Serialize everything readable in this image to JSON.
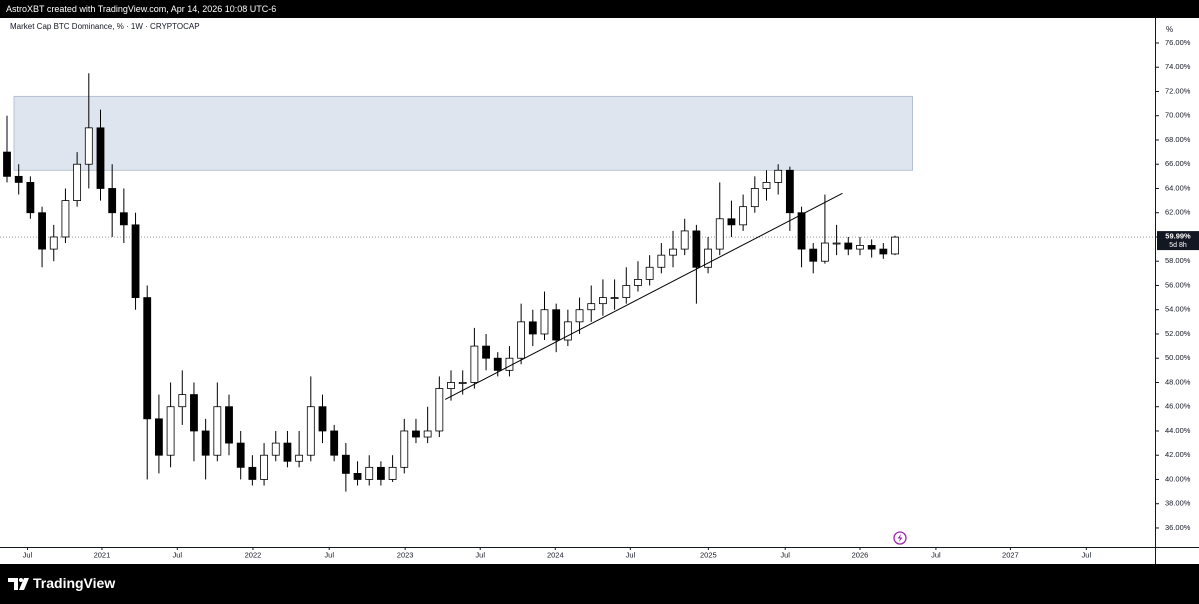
{
  "chart_data": {
    "type": "candlestick",
    "header": "AstroXBT created with TradingView.com, Apr 14, 2026 10:08 UTC-6",
    "title": "Market Cap BTC Dominance, % · 1W · CRYPTOCAP",
    "y_unit": "%",
    "brand": "TradingView",
    "x": [
      0,
      4,
      8,
      12,
      16,
      20,
      24,
      28,
      32,
      36,
      40,
      44,
      48,
      52,
      56,
      60,
      64,
      68,
      72,
      76,
      80,
      84,
      88,
      92,
      96,
      100,
      104,
      108,
      112,
      116,
      120,
      124,
      128,
      132,
      136,
      140,
      144,
      148,
      152,
      156,
      160,
      164,
      168,
      172,
      176,
      180,
      184,
      188,
      192,
      196,
      200,
      204,
      208,
      212,
      216,
      220,
      224,
      228,
      232,
      236,
      240,
      244,
      248,
      252,
      256,
      260,
      264,
      268,
      272,
      276,
      280,
      284,
      288,
      292,
      296,
      300,
      304
    ],
    "open": [
      67,
      65,
      64.5,
      62,
      59,
      60,
      63,
      66,
      69,
      64,
      62,
      61,
      55,
      45,
      42,
      46,
      47,
      44,
      42,
      46,
      43,
      41,
      40,
      42,
      43,
      41.5,
      42,
      46,
      44,
      42,
      40.5,
      40,
      41,
      40,
      41,
      44,
      43.5,
      44,
      47.5,
      48,
      48,
      51,
      50,
      49,
      50,
      53,
      52,
      54,
      51.5,
      53,
      54,
      54.5,
      55,
      55,
      56,
      56.5,
      57.5,
      58.5,
      59,
      60.5,
      57.5,
      59,
      61.5,
      61,
      62.5,
      64,
      64.5,
      65.5,
      62,
      59,
      58,
      59.5,
      59.5,
      59,
      59.3,
      59,
      58.6
    ],
    "high": [
      70,
      66,
      65,
      62.5,
      61,
      64,
      67,
      73.5,
      70.5,
      66,
      64,
      62,
      56,
      47,
      48,
      49,
      48,
      45,
      48,
      47,
      44,
      42,
      43,
      44,
      44,
      44,
      48.5,
      47,
      44.5,
      43,
      41.5,
      42,
      41.5,
      42,
      45,
      45,
      46,
      48.5,
      49,
      49,
      52.5,
      52,
      50.5,
      51,
      54.5,
      54,
      55.5,
      54.5,
      54,
      55,
      56,
      56.5,
      56.5,
      57.5,
      58,
      58.5,
      59.5,
      60.5,
      61.5,
      61,
      60,
      64.5,
      63,
      63.5,
      65,
      65.5,
      66,
      65.8,
      62.5,
      59.5,
      63.5,
      61,
      60,
      60,
      59.8,
      59.5,
      60.1
    ],
    "low": [
      64.5,
      63.5,
      61.5,
      57.5,
      58,
      59.5,
      62.5,
      64,
      63,
      60,
      59.5,
      54,
      40,
      40.5,
      41,
      44.5,
      41.5,
      40,
      41.5,
      42,
      40,
      39.5,
      39.5,
      41.5,
      41,
      41,
      41.5,
      43,
      41.5,
      39,
      39.5,
      39.5,
      39.5,
      39.8,
      40.5,
      43,
      43,
      43.5,
      46.5,
      47,
      47.5,
      49,
      48.5,
      48.5,
      49.5,
      51,
      51.5,
      50.5,
      51,
      52,
      53,
      53.5,
      54,
      54.5,
      55.5,
      56,
      57,
      57.5,
      58.5,
      54.5,
      57,
      58.5,
      60,
      60.5,
      62,
      63,
      63.5,
      60.5,
      57.5,
      57,
      57.8,
      58.5,
      58.5,
      58.5,
      58.3,
      58.2,
      58.5
    ],
    "close": [
      65,
      64.5,
      62,
      59,
      60,
      63,
      66,
      69,
      64,
      62,
      61,
      55,
      45,
      42,
      46,
      47,
      44,
      42,
      46,
      43,
      41,
      40,
      42,
      43,
      41.5,
      42,
      46,
      44,
      42,
      40.5,
      40,
      41,
      40,
      41,
      44,
      43.5,
      44,
      47.5,
      48,
      48,
      51,
      50,
      49,
      50,
      53,
      52,
      54,
      51.5,
      53,
      54,
      54.5,
      55,
      55,
      56,
      56.5,
      57.5,
      58.5,
      59,
      60.5,
      57.5,
      59,
      61.5,
      61,
      62.5,
      64,
      64.5,
      65.5,
      62,
      59,
      58,
      59.5,
      59.5,
      59,
      59.3,
      59,
      58.6,
      59.99
    ],
    "up_color": "#ffffff",
    "down_color": "#000000",
    "xlim": [
      -2.4,
      393
    ],
    "xticks": [
      {
        "value": 7,
        "label": "Jul"
      },
      {
        "value": 32.5,
        "label": "2021"
      },
      {
        "value": 58.3,
        "label": "Jul"
      },
      {
        "value": 84.2,
        "label": "2022"
      },
      {
        "value": 110.3,
        "label": "Jul"
      },
      {
        "value": 136.3,
        "label": "2023"
      },
      {
        "value": 162,
        "label": "Jul"
      },
      {
        "value": 187.7,
        "label": "2024"
      },
      {
        "value": 213.4,
        "label": "Jul"
      },
      {
        "value": 240.1,
        "label": "2025"
      },
      {
        "value": 266.4,
        "label": "Jul"
      },
      {
        "value": 292,
        "label": "2026"
      },
      {
        "value": 318,
        "label": "Jul"
      },
      {
        "value": 343.5,
        "label": "2027"
      },
      {
        "value": 369.5,
        "label": "Jul"
      }
    ],
    "ylim": [
      34.43,
      78.06
    ],
    "yticks": [
      {
        "value": 36,
        "label": "36.00%"
      },
      {
        "value": 38,
        "label": "38.00%"
      },
      {
        "value": 40,
        "label": "40.00%"
      },
      {
        "value": 42,
        "label": "42.00%"
      },
      {
        "value": 44,
        "label": "44.00%"
      },
      {
        "value": 46,
        "label": "46.00%"
      },
      {
        "value": 48,
        "label": "48.00%"
      },
      {
        "value": 50,
        "label": "50.00%"
      },
      {
        "value": 52,
        "label": "52.00%"
      },
      {
        "value": 54,
        "label": "54.00%"
      },
      {
        "value": 56,
        "label": "56.00%"
      },
      {
        "value": 58,
        "label": "58.00%"
      },
      {
        "value": 60,
        "label": "60.00%"
      },
      {
        "value": 62,
        "label": "62.00%"
      },
      {
        "value": 64,
        "label": "64.00%"
      },
      {
        "value": 66,
        "label": "66.00%"
      },
      {
        "value": 68,
        "label": "68.00%"
      },
      {
        "value": 70,
        "label": "70.00%"
      },
      {
        "value": 72,
        "label": "72.00%"
      },
      {
        "value": 74,
        "label": "74.00%"
      },
      {
        "value": 76,
        "label": "76.00%"
      }
    ],
    "grid": false,
    "last_price": {
      "value": 59.99,
      "label": "59.99%"
    },
    "countdown": "5d 8h",
    "zone": {
      "x": [
        0,
        310
      ],
      "y": [
        65.5,
        71.6
      ],
      "color": "#dfe5ee"
    },
    "trendline": {
      "x": [
        150,
        286
      ],
      "y": [
        46.6,
        63.6
      ]
    }
  }
}
